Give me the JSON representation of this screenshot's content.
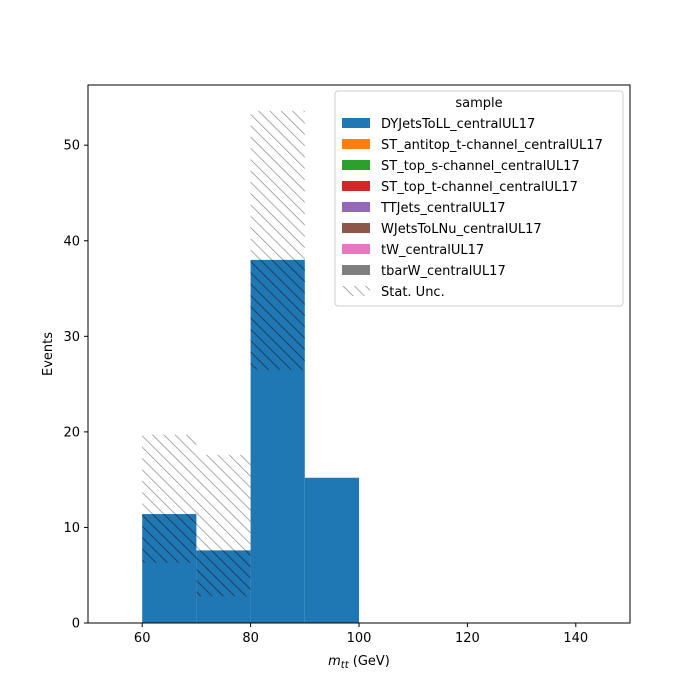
{
  "chart_data": {
    "type": "bar",
    "subtype": "stacked_histogram",
    "xlabel_main": "m",
    "xlabel_sub": "tt",
    "xlabel_unit": " (GeV)",
    "ylabel": "Events",
    "xlim": [
      50,
      150
    ],
    "ylim": [
      0,
      56.3
    ],
    "x_ticks": [
      60,
      80,
      100,
      120,
      140
    ],
    "y_ticks": [
      0,
      10,
      20,
      30,
      40,
      50
    ],
    "bin_edges": [
      60,
      70,
      80,
      90,
      100
    ],
    "series": [
      {
        "name": "DYJetsToLL_centralUL17",
        "color": "#1f77b4",
        "values": [
          11.4,
          7.6,
          38.0,
          15.2
        ]
      },
      {
        "name": "ST_antitop_t-channel_centralUL17",
        "color": "#ff7f0e",
        "values": [
          0,
          0,
          0,
          0
        ]
      },
      {
        "name": "ST_top_s-channel_centralUL17",
        "color": "#2ca02c",
        "values": [
          0,
          0,
          0,
          0
        ]
      },
      {
        "name": "ST_top_t-channel_centralUL17",
        "color": "#d62728",
        "values": [
          0,
          0,
          0,
          0
        ]
      },
      {
        "name": "TTJets_centralUL17",
        "color": "#9467bd",
        "values": [
          0,
          0,
          0,
          0
        ]
      },
      {
        "name": "WJetsToLNu_centralUL17",
        "color": "#8c564b",
        "values": [
          0,
          0,
          0,
          0
        ]
      },
      {
        "name": "tW_centralUL17",
        "color": "#e377c2",
        "values": [
          0,
          0,
          0,
          0
        ]
      },
      {
        "name": "tbarW_centralUL17",
        "color": "#7f7f7f",
        "values": [
          0,
          0,
          0,
          0
        ]
      }
    ],
    "stat_unc": {
      "name": "Stat. Unc.",
      "low": [
        6.3,
        2.8,
        26.5,
        15.2
      ],
      "high": [
        19.7,
        17.6,
        53.6,
        15.2
      ]
    },
    "legend": {
      "title": "sample",
      "position": "upper right"
    },
    "grid": false
  }
}
